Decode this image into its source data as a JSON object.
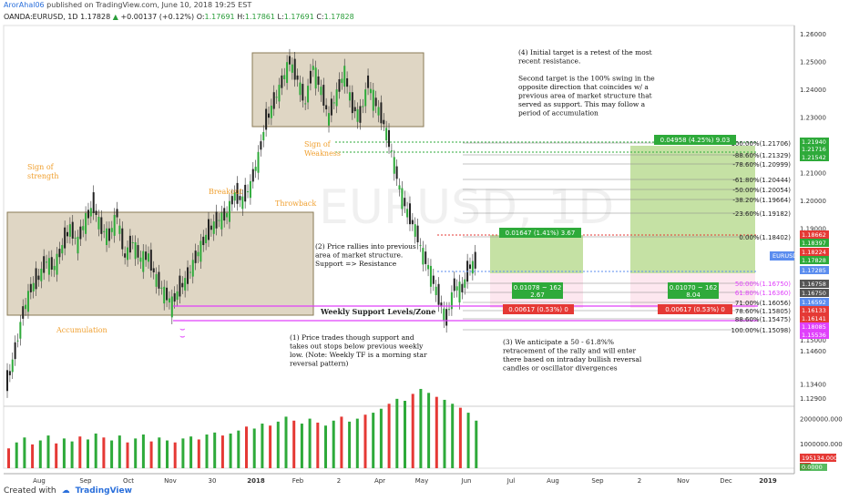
{
  "header": {
    "author": "ArorAhal06",
    "published": "published on TradingView.com, June 10, 2018 19:25 EST",
    "symbol_line": "OANDA:EURUSD, 1D",
    "last": "1.17828",
    "change_arrow": "▲",
    "change": "+0.00137 (+0.12%)",
    "o_label": "O:",
    "o": "1.17691",
    "h_label": "H:",
    "h": "1.17861",
    "l_label": "L:",
    "l": "1.17691",
    "c_label": "C:",
    "c": "1.17828"
  },
  "footer": {
    "created_with": "Created with",
    "brand": "TradingView"
  },
  "chart_data": {
    "type": "candlestick",
    "watermark": "EURUSD, 1D",
    "xlabels": [
      "Aug",
      "Sep",
      "Oct",
      "Nov",
      "30",
      "2018",
      "Feb",
      "2",
      "Apr",
      "May",
      "Jun",
      "Jul",
      "Aug",
      "Sep",
      "2",
      "Nov",
      "Dec",
      "2019"
    ],
    "price_ticks": [
      "1.26000",
      "1.25000",
      "1.24000",
      "1.23000",
      "1.22000",
      "1.21000",
      "1.20000",
      "1.19000",
      "1.18000",
      "1.17000",
      "1.16000",
      "1.15000",
      "1.14600",
      "1.13400",
      "1.12900"
    ],
    "price_tick_values": [
      1.26,
      1.25,
      1.24,
      1.23,
      1.22,
      1.21,
      1.2,
      1.19,
      1.18,
      1.17,
      1.16,
      1.15,
      1.146,
      1.134,
      1.129
    ],
    "volume_ticks": [
      "2000000.000",
      "1000000.000"
    ],
    "volume_tick_values": [
      2000000,
      1000000
    ],
    "price_range": [
      1.126,
      1.263
    ],
    "volume_range": [
      0,
      2500000
    ],
    "close_path": [
      [
        0,
        1.134
      ],
      [
        3,
        1.145
      ],
      [
        6,
        1.159
      ],
      [
        9,
        1.168
      ],
      [
        12,
        1.172
      ],
      [
        15,
        1.178
      ],
      [
        18,
        1.176
      ],
      [
        21,
        1.183
      ],
      [
        24,
        1.19
      ],
      [
        27,
        1.185
      ],
      [
        30,
        1.193
      ],
      [
        33,
        1.198
      ],
      [
        36,
        1.19
      ],
      [
        39,
        1.187
      ],
      [
        42,
        1.195
      ],
      [
        45,
        1.18
      ],
      [
        48,
        1.185
      ],
      [
        51,
        1.179
      ],
      [
        54,
        1.18
      ],
      [
        57,
        1.172
      ],
      [
        60,
        1.167
      ],
      [
        63,
        1.163
      ],
      [
        66,
        1.168
      ],
      [
        69,
        1.172
      ],
      [
        72,
        1.179
      ],
      [
        75,
        1.185
      ],
      [
        78,
        1.19
      ],
      [
        81,
        1.193
      ],
      [
        84,
        1.195
      ],
      [
        87,
        1.202
      ],
      [
        90,
        1.2
      ],
      [
        93,
        1.205
      ],
      [
        96,
        1.215
      ],
      [
        99,
        1.228
      ],
      [
        102,
        1.235
      ],
      [
        105,
        1.242
      ],
      [
        108,
        1.25
      ],
      [
        111,
        1.244
      ],
      [
        114,
        1.235
      ],
      [
        117,
        1.248
      ],
      [
        120,
        1.24
      ],
      [
        123,
        1.23
      ],
      [
        126,
        1.238
      ],
      [
        129,
        1.246
      ],
      [
        132,
        1.234
      ],
      [
        135,
        1.23
      ],
      [
        138,
        1.242
      ],
      [
        141,
        1.235
      ],
      [
        144,
        1.228
      ],
      [
        147,
        1.218
      ],
      [
        150,
        1.205
      ],
      [
        153,
        1.196
      ],
      [
        156,
        1.19
      ],
      [
        159,
        1.181
      ],
      [
        162,
        1.174
      ],
      [
        165,
        1.165
      ],
      [
        168,
        1.157
      ],
      [
        171,
        1.169
      ],
      [
        174,
        1.168
      ],
      [
        177,
        1.176
      ],
      [
        180,
        1.1783
      ]
    ],
    "volume": [
      200,
      260,
      310,
      240,
      280,
      330,
      250,
      300,
      270,
      320,
      290,
      350,
      310,
      280,
      330,
      260,
      300,
      340,
      270,
      310,
      280,
      260,
      300,
      320,
      290,
      340,
      360,
      330,
      350,
      380,
      420,
      400,
      450,
      430,
      470,
      520,
      480,
      450,
      500,
      460,
      430,
      480,
      520,
      470,
      500,
      540,
      560,
      600,
      650,
      700,
      680,
      750,
      800,
      760,
      720,
      690,
      650,
      610,
      560,
      480
    ],
    "volume_last": "195134.0000",
    "indicator_label": "Plot",
    "indicator_value": "0.0000",
    "current_price_label": "EURUSD",
    "price_tags": [
      {
        "text": "1.21940",
        "color": "#2eaa3a"
      },
      {
        "text": "1.21716",
        "color": "#2eaa3a"
      },
      {
        "text": "1.21542",
        "color": "#2eaa3a"
      },
      {
        "text": "1.18662",
        "color": "#e53935"
      },
      {
        "text": "1.18397",
        "color": "#2eaa3a"
      },
      {
        "text": "1.18224",
        "color": "#e53935"
      },
      {
        "text": "1.17828",
        "color": "#2eaa3a"
      },
      {
        "text": "1.17285",
        "color": "#5b8def"
      },
      {
        "text": "1.16758",
        "color": "#555555"
      },
      {
        "text": "1.16750",
        "color": "#555555"
      },
      {
        "text": "1.16592",
        "color": "#5b8def"
      },
      {
        "text": "1.16133",
        "color": "#e53935"
      },
      {
        "text": "1.16141",
        "color": "#e53935"
      },
      {
        "text": "1.18085",
        "color": "#e040fb"
      },
      {
        "text": "1.15536",
        "color": "#e040fb"
      }
    ],
    "fib_upper": [
      "100.00%(1.21706)",
      "-88.60%(1.21329)",
      "-78.60%(1.20999)",
      "-61.80%(1.20444)",
      "-50.00%(1.20054)",
      "-38.20%(1.19664)",
      "-23.60%(1.19182)"
    ],
    "fib_lower": [
      "0.00%(1.18402)",
      "50.00%(1.16750)",
      "61.80%(1.16360)",
      "71.00%(1.16056)",
      "78.60%(1.15805)",
      "88.60%(1.15475)",
      "100.00%(1.15098)"
    ],
    "measure_boxes": [
      {
        "text": "0.04958 (4.25%) 9.03",
        "color": "#2eaa3a"
      },
      {
        "text": "0.01647 (1.41%) 3.67",
        "color": "#2eaa3a"
      },
      {
        "text": "0.01078 ~ 162",
        "sub": "2.67",
        "color": "#2eaa3a"
      },
      {
        "text": "0.01070 ~ 162",
        "sub": "8.04",
        "color": "#2eaa3a"
      },
      {
        "text": "0.00617 (0.53%) 0",
        "color": "#e53935"
      },
      {
        "text": "0.00617 (0.53%) 0",
        "color": "#e53935"
      }
    ],
    "labels": {
      "sign_strength": [
        "Sign of",
        "strength"
      ],
      "accumulation": "Accumulation",
      "breakout": "Breakout",
      "throwback": "Throwback",
      "sign_weakness": [
        "Sign of",
        "Weakness"
      ],
      "weekly_support": "Weekly Support Levels/Zone"
    },
    "notes": {
      "n1": [
        "(1) Price trades though support and",
        "takes out stops below previous weekly",
        "low. (Note: Weekly TF is a morning star",
        "reversal pattern)"
      ],
      "n2": [
        "(2) Price rallies into previous",
        "area of market structure.",
        "Support => Resistance"
      ],
      "n3": [
        "(3) We anticipate a 50 - 61.8%%",
        "retracement of the rally and will enter",
        "there based on intraday bullish reversal",
        "candles or oscillator divergences"
      ],
      "n4": [
        "(4) Initial target is a retest of the most",
        "recent resistance.",
        "",
        "Second target is the 100% swing in the",
        "opposite direction that coincides w/ a",
        "previous area of market structure that",
        "served as support. This may follow a",
        "period of accumulation"
      ]
    },
    "colors": {
      "up": "#2eaa3a",
      "down": "#e53935",
      "label_orange": "#f0a030",
      "box": "#b9a57c",
      "support": "#e040fb"
    }
  }
}
